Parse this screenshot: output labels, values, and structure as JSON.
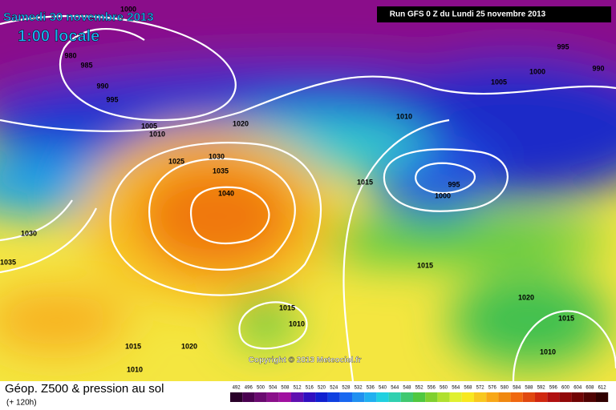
{
  "header": {
    "date": "Samedi 30 novembre 2013",
    "time": "1:00 locale",
    "run": "Run GFS 0 Z du Lundi 25 novembre 2013"
  },
  "isobar_labels": [
    "1000",
    "980",
    "985",
    "990",
    "995",
    "1005",
    "1010",
    "1020",
    "1025",
    "1030",
    "1035",
    "1040",
    "1030",
    "1035",
    "1015",
    "1020",
    "1010",
    "1015",
    "1010",
    "1015",
    "995",
    "1000",
    "1010",
    "1005",
    "1000",
    "995",
    "990",
    "1015",
    "1020",
    "1015",
    "1010"
  ],
  "copyright": "Copyright © 2013 Meteociel.fr",
  "footer": {
    "title": "Géop. Z500 & pression au sol",
    "subtitle": "(+ 120h)"
  },
  "legend": {
    "values": [
      492,
      496,
      500,
      504,
      508,
      512,
      516,
      520,
      524,
      528,
      532,
      536,
      540,
      544,
      548,
      552,
      556,
      560,
      564,
      568,
      572,
      576,
      580,
      584,
      588,
      592,
      596,
      600,
      604,
      608,
      612
    ]
  }
}
